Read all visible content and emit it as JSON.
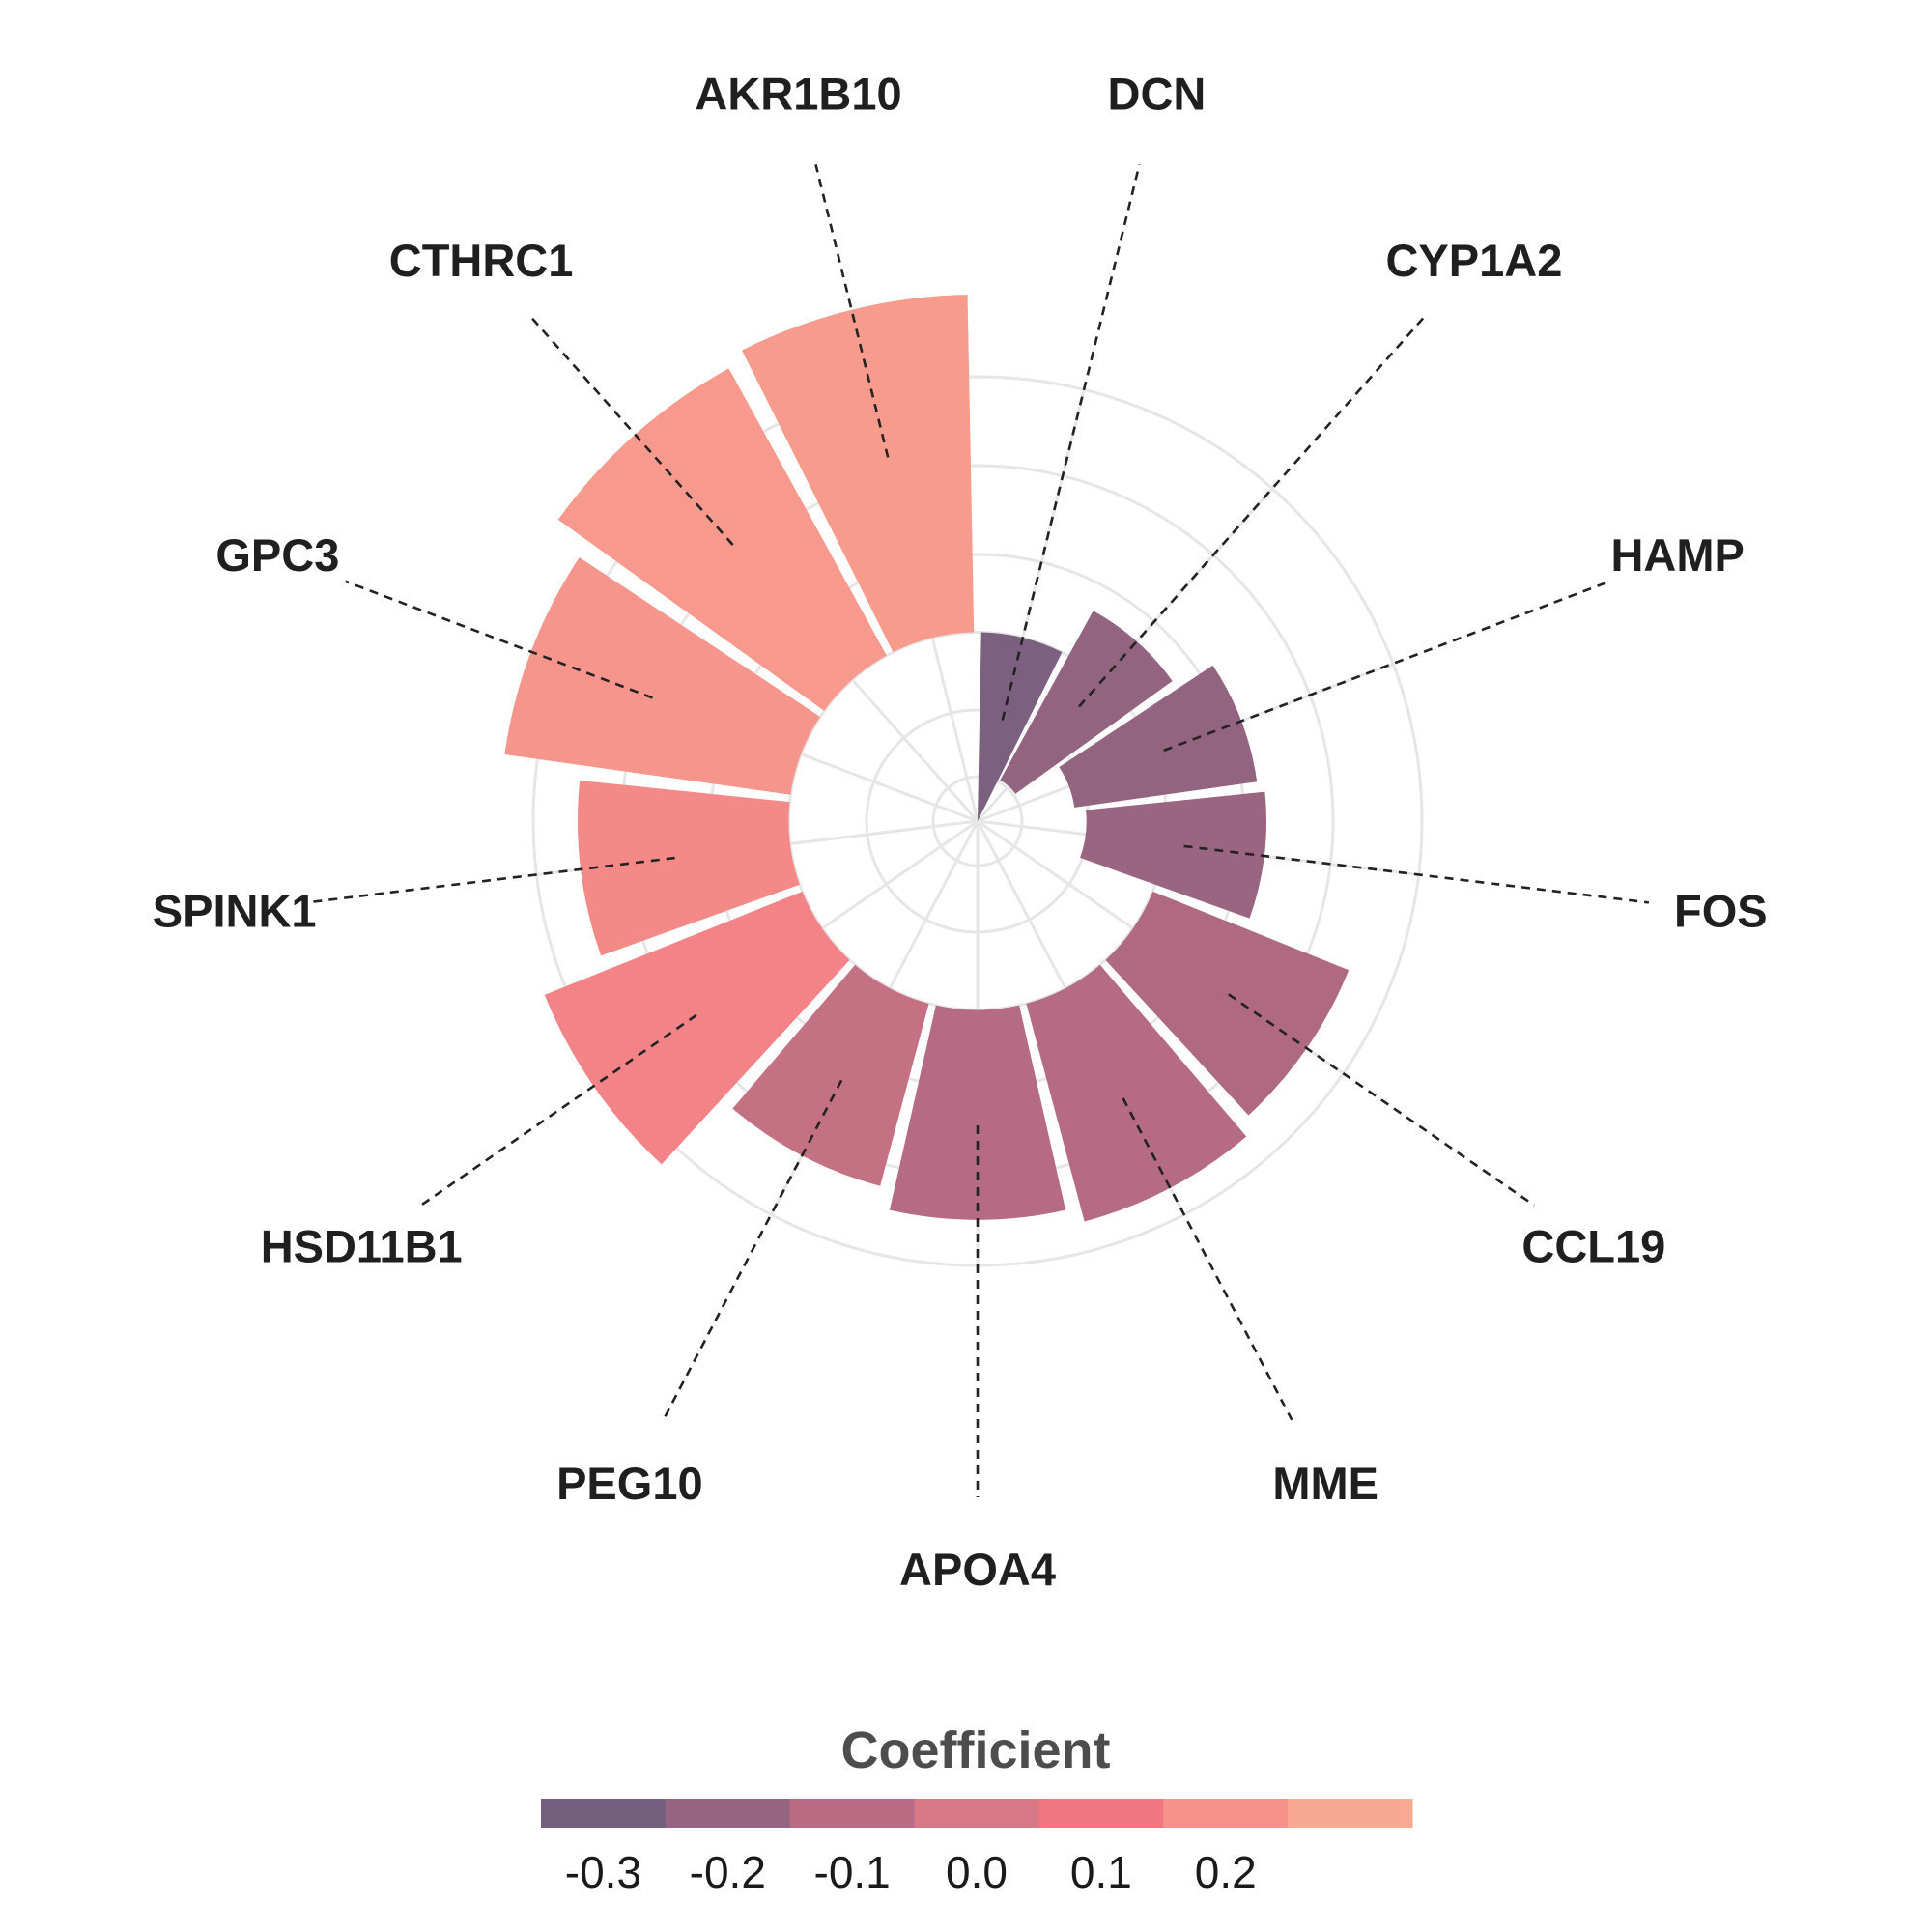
{
  "chart_data": {
    "type": "bar",
    "polar": true,
    "title": "",
    "categories": [
      "DCN",
      "CYP1A2",
      "HAMP",
      "FOS",
      "CCL19",
      "MME",
      "APOA4",
      "PEG10",
      "HSD11B1",
      "SPINK1",
      "GPC3",
      "CTHRC1",
      "AKR1B10"
    ],
    "values": [
      -0.32,
      -0.24,
      -0.24,
      -0.22,
      -0.15,
      -0.13,
      -0.13,
      -0.07,
      0.17,
      0.2,
      0.25,
      0.27,
      0.28
    ],
    "bar_heights": [
      1.7,
      1.74,
      1.66,
      1.62,
      1.9,
      2.03,
      1.89,
      1.7,
      2.5,
      1.9,
      2.6,
      2.95,
      3.04
    ],
    "bar_base": [
      0.0,
      0.42,
      0.88,
      0.98,
      1.7,
      1.7,
      1.7,
      1.7,
      1.7,
      1.7,
      1.7,
      1.7,
      1.7
    ],
    "radial_gridlines": [
      0.4,
      1.0,
      1.7,
      2.4,
      3.2,
      4.0
    ],
    "grid": true,
    "color_map": "diverging purple-to-peach",
    "legend": {
      "title": "Coefficient",
      "position": "bottom",
      "ticks": [
        "-0.3",
        "-0.2",
        "-0.1",
        "0.0",
        "0.1",
        "0.2"
      ],
      "tick_values": [
        -0.3,
        -0.2,
        -0.1,
        0.0,
        0.1,
        0.2
      ],
      "range": [
        -0.35,
        0.35
      ],
      "colors": [
        "#745f7e",
        "#956480",
        "#b96c83",
        "#d77886",
        "#f07781",
        "#f6928b",
        "#f9a991"
      ]
    }
  }
}
